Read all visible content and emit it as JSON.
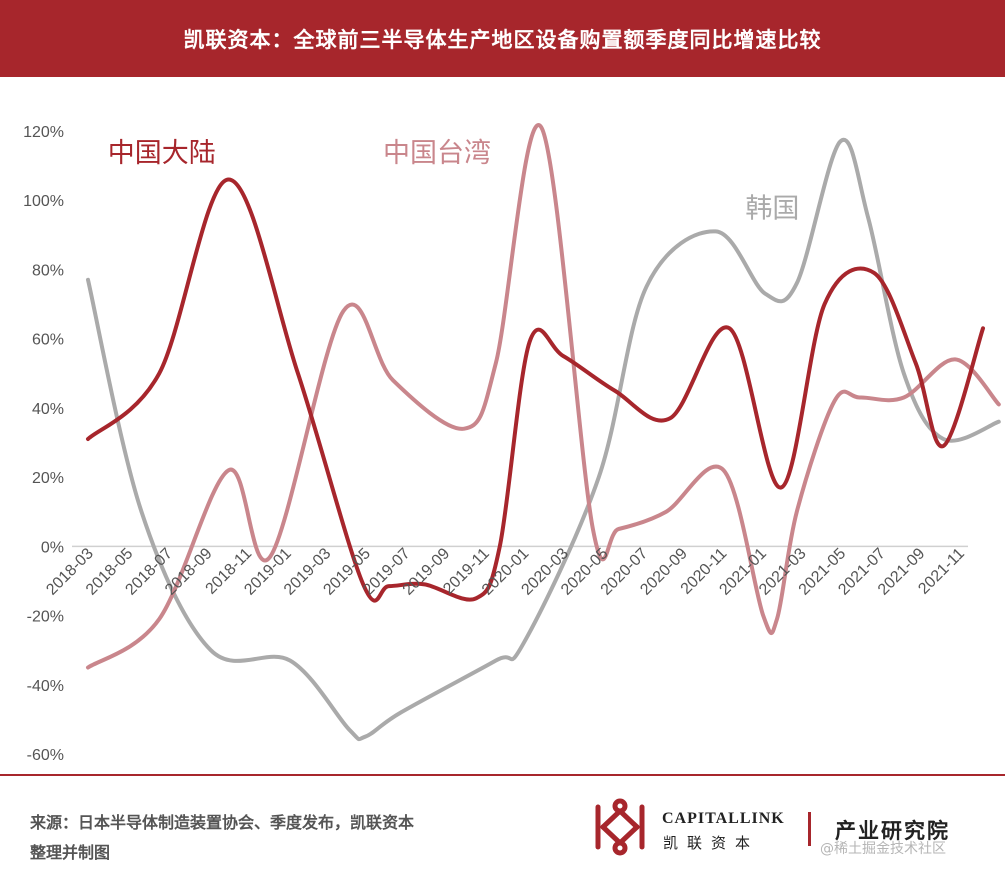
{
  "header": {
    "title": "凯联资本：全球前三半导体生产地区设备购置额季度同比增速比较"
  },
  "footer": {
    "source_line1": "来源：日本半导体制造装置协会、季度发布，凯联资本",
    "source_line2": "整理并制图",
    "brand_en": "CAPITALLINK",
    "brand_cn": "凯联资本",
    "institute": "产业研究院",
    "watermark": "@稀土掘金技术社区"
  },
  "colors": {
    "banner": "#a7262c",
    "mainland": "#a7262c",
    "taiwan": "#c9868c",
    "korea": "#aaaaaa"
  },
  "chart_data": {
    "type": "line",
    "title": "",
    "xlabel": "",
    "ylabel": "",
    "ylim": [
      -60,
      120
    ],
    "yticks": [
      -60,
      -40,
      -20,
      0,
      20,
      40,
      60,
      80,
      100,
      120
    ],
    "ytick_labels": [
      "-60%",
      "-40%",
      "-20%",
      "0%",
      "20%",
      "40%",
      "60%",
      "80%",
      "100%",
      "120%"
    ],
    "categories": [
      "2018-03",
      "2018-05",
      "2018-07",
      "2018-09",
      "2018-11",
      "2019-01",
      "2019-03",
      "2019-05",
      "2019-07",
      "2019-09",
      "2019-11",
      "2020-01",
      "2020-03",
      "2020-05",
      "2020-07",
      "2020-09",
      "2020-11",
      "2021-01",
      "2021-03",
      "2021-05",
      "2021-07",
      "2021-09",
      "2021-11"
    ],
    "grid": false,
    "legend": "inline",
    "series": [
      {
        "name": "中国大陆",
        "color": "#a7262c",
        "label_pos": [
          0.5,
          111
        ],
        "points": [
          [
            0,
            31
          ],
          [
            1.8,
            50
          ],
          [
            3.55,
            106
          ],
          [
            5.3,
            50
          ],
          [
            6.95,
            -11
          ],
          [
            7.6,
            -11.5
          ],
          [
            8.5,
            -11
          ],
          [
            9.8,
            -15
          ],
          [
            10.4,
            0
          ],
          [
            11.15,
            59
          ],
          [
            12,
            55
          ],
          [
            13.3,
            45
          ],
          [
            14.7,
            37
          ],
          [
            16.2,
            63
          ],
          [
            17.5,
            17
          ],
          [
            18.6,
            70
          ],
          [
            19.85,
            79
          ],
          [
            20.9,
            53
          ],
          [
            21.6,
            29
          ],
          [
            22.6,
            63
          ]
        ]
      },
      {
        "name": "中国台湾",
        "color": "#c9868c",
        "label_pos": [
          7.45,
          111
        ],
        "points": [
          [
            0,
            -35
          ],
          [
            1.8,
            -21
          ],
          [
            3.55,
            22
          ],
          [
            4.6,
            -3
          ],
          [
            6.45,
            68
          ],
          [
            7.7,
            48
          ],
          [
            9.5,
            34
          ],
          [
            10.3,
            53
          ],
          [
            11.45,
            121
          ],
          [
            12.75,
            5
          ],
          [
            13.4,
            5
          ],
          [
            14.6,
            10
          ],
          [
            16.05,
            22
          ],
          [
            17.05,
            -20
          ],
          [
            17.4,
            -21
          ],
          [
            17.9,
            10
          ],
          [
            18.85,
            42
          ],
          [
            19.5,
            43
          ],
          [
            20.6,
            43
          ],
          [
            21.9,
            54
          ],
          [
            23,
            41
          ]
        ]
      },
      {
        "name": "韩国",
        "color": "#aaaaaa",
        "label_pos": [
          16.6,
          95
        ],
        "points": [
          [
            0,
            77
          ],
          [
            1.35,
            10
          ],
          [
            3.1,
            -30
          ],
          [
            5.1,
            -33
          ],
          [
            6.6,
            -53
          ],
          [
            7,
            -55
          ],
          [
            7.9,
            -48
          ],
          [
            10.3,
            -33
          ],
          [
            11,
            -28
          ],
          [
            12.9,
            20
          ],
          [
            14.1,
            75
          ],
          [
            15.85,
            91
          ],
          [
            17.1,
            73
          ],
          [
            17.9,
            76
          ],
          [
            19,
            117
          ],
          [
            19.7,
            95
          ],
          [
            20.6,
            50
          ],
          [
            21.6,
            31
          ],
          [
            23,
            36
          ]
        ]
      }
    ]
  }
}
